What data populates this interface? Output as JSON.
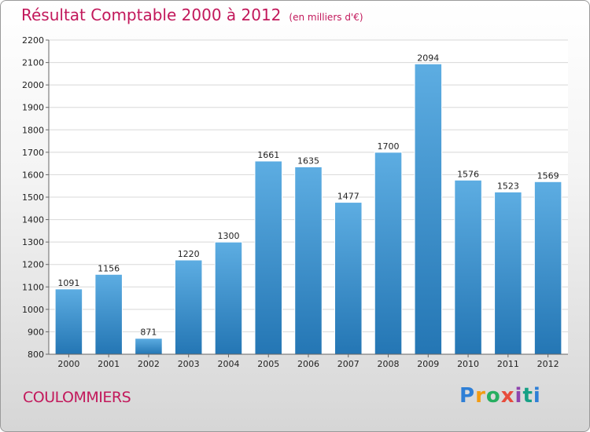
{
  "header": {
    "title": "Résultat Comptable 2000 à 2012",
    "unit": "(en milliers d'€)"
  },
  "footer": {
    "city": "COULOMMIERS",
    "logo": [
      "P",
      "r",
      "o",
      "x",
      "i",
      "t",
      "i"
    ]
  },
  "colors": {
    "title": "#c2185b",
    "bar_top": "#5dade2",
    "bar_bottom": "#2476b4",
    "grid": "#d8d8d8"
  },
  "chart_data": {
    "type": "bar",
    "title": "Résultat Comptable 2000 à 2012",
    "subtitle": "(en milliers d'€)",
    "xlabel": "",
    "ylabel": "",
    "categories": [
      "2000",
      "2001",
      "2002",
      "2003",
      "2004",
      "2005",
      "2006",
      "2007",
      "2008",
      "2009",
      "2010",
      "2011",
      "2012"
    ],
    "values": [
      1091,
      1156,
      871,
      1220,
      1300,
      1661,
      1635,
      1477,
      1700,
      2094,
      1576,
      1523,
      1569
    ],
    "ylim": [
      800,
      2200
    ],
    "yticks": [
      800,
      900,
      1000,
      1100,
      1200,
      1300,
      1400,
      1500,
      1600,
      1700,
      1800,
      1900,
      2000,
      2100,
      2200
    ],
    "grid": true,
    "legend": "none"
  }
}
